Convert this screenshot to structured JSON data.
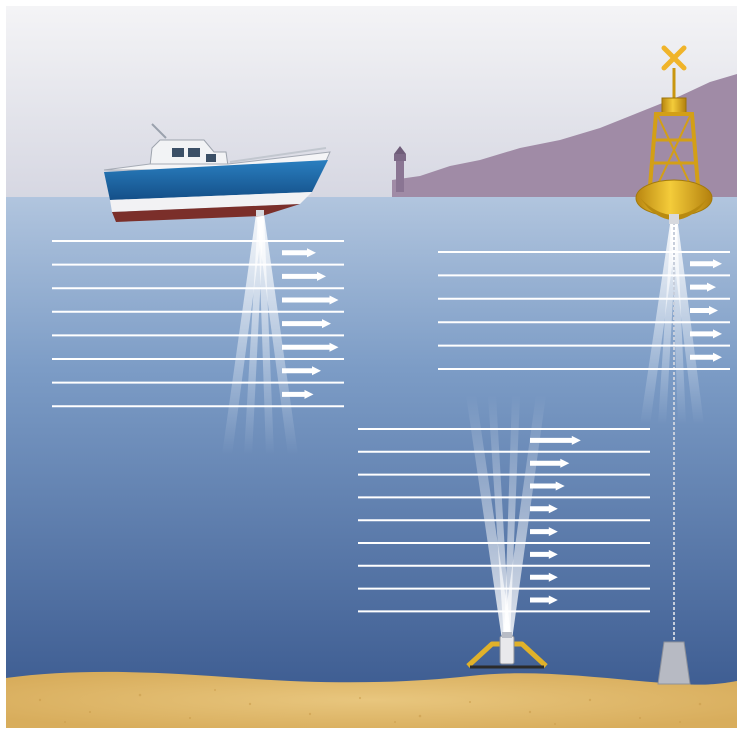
{
  "scene": {
    "colors": {
      "sky_top": "#f4f4f6",
      "sky_bottom": "#d9d9e3",
      "water_top": "#a9bfda",
      "water_mid": "#6f90bd",
      "water_bottom": "#3f5f94",
      "sand": "#e2bd72",
      "coast": "#9f8aa4",
      "boat_hull": "#1f6fb0",
      "buoy": "#e3ad1c",
      "lines": "#ffffff"
    },
    "instruments": [
      {
        "name": "boat-mounted-adcp",
        "icon": "boat-icon",
        "current_arrow_levels": [
          0.4,
          0.6,
          0.85,
          0.7,
          0.85,
          0.5,
          0.35
        ]
      },
      {
        "name": "buoy-mounted-adcp",
        "icon": "buoy-icon",
        "current_arrow_levels": [
          0.45,
          0.3,
          0.35,
          0.45,
          0.45
        ]
      },
      {
        "name": "seabed-mounted-adcp",
        "icon": "seabed-frame-icon",
        "current_arrow_levels": [
          0.8,
          0.55,
          0.45,
          0.3,
          0.3,
          0.3,
          0.3,
          0.3
        ]
      }
    ]
  }
}
